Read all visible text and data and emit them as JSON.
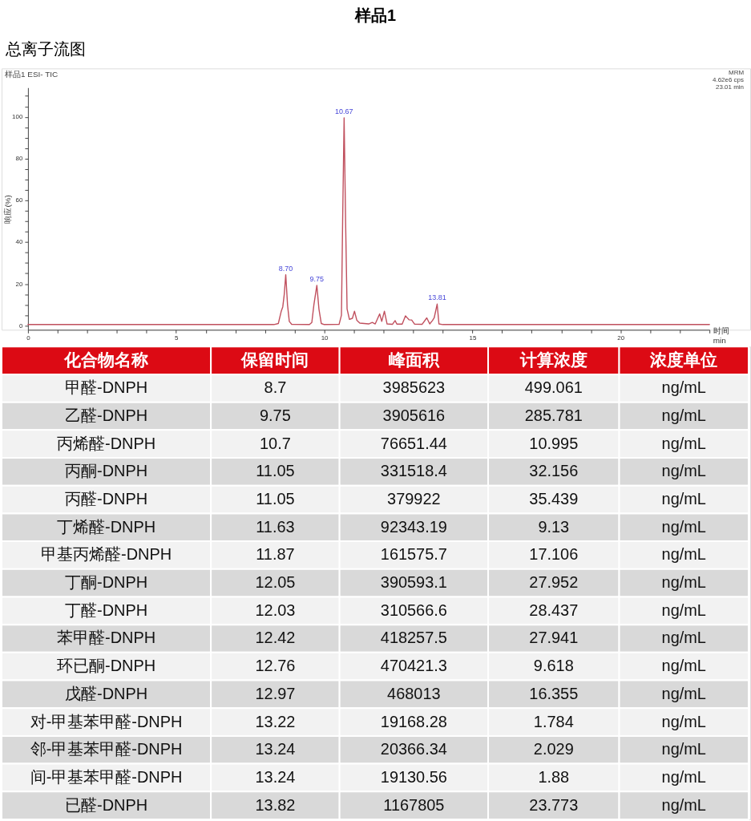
{
  "chart_data": [
    {
      "type": "line",
      "title": "样品1",
      "subtitle": "总离子流图",
      "xlabel": "时间 min",
      "ylabel": "响应(%)",
      "x": [
        0,
        3,
        8.3,
        8.45,
        8.55,
        8.6,
        8.65,
        8.7,
        8.76,
        8.82,
        8.9,
        9.5,
        9.58,
        9.65,
        9.75,
        9.82,
        9.9,
        10.0,
        10.5,
        10.58,
        10.62,
        10.67,
        10.72,
        10.77,
        10.85,
        10.95,
        11.02,
        11.1,
        11.2,
        11.5,
        11.62,
        11.72,
        11.87,
        11.94,
        12.03,
        12.12,
        12.3,
        12.39,
        12.45,
        12.63,
        12.74,
        12.86,
        12.95,
        13.05,
        13.3,
        13.46,
        13.56,
        13.65,
        13.71,
        13.81,
        13.87,
        14.0,
        23
      ],
      "series": [
        {
          "color": "#c0505e",
          "values": [
            0.5,
            0.5,
            0.5,
            1,
            7,
            9,
            15,
            24.4,
            10,
            2,
            0.6,
            0.5,
            1.5,
            10,
            19.3,
            8,
            1,
            0.5,
            0.6,
            5,
            50,
            99.5,
            50,
            8,
            3,
            3.5,
            6.9,
            2.5,
            1.2,
            0.8,
            1.5,
            0.8,
            5.6,
            2,
            6.9,
            0.8,
            0.6,
            2.4,
            0.7,
            0.7,
            4.7,
            2.8,
            2.7,
            0.7,
            0.6,
            3.7,
            0.8,
            2.4,
            3.7,
            10.3,
            0.8,
            0.5,
            0.5
          ]
        }
      ],
      "xlim": [
        0,
        23
      ],
      "ylim": [
        -2,
        114
      ],
      "xticks": [
        0,
        {
          "value": 1,
          "label": null
        },
        {
          "value": 2,
          "label": null
        },
        {
          "value": 3,
          "label": null
        },
        {
          "value": 4,
          "label": null
        },
        5,
        {
          "value": 6,
          "label": null
        },
        {
          "value": 7,
          "label": null
        },
        {
          "value": 8,
          "label": null
        },
        {
          "value": 9,
          "label": null
        },
        10,
        {
          "value": 11,
          "label": null
        },
        {
          "value": 12,
          "label": null
        },
        {
          "value": 13,
          "label": null
        },
        {
          "value": 14,
          "label": null
        },
        15,
        {
          "value": 16,
          "label": null
        },
        {
          "value": 17,
          "label": null
        },
        {
          "value": 18,
          "label": null
        },
        {
          "value": 19,
          "label": null
        },
        20,
        {
          "value": 21,
          "label": null
        },
        {
          "value": 22,
          "label": null
        },
        {
          "value": 23,
          "label": null
        }
      ],
      "yticks": [
        0,
        {
          "value": 5,
          "label": null
        },
        {
          "value": 10,
          "label": null
        },
        {
          "value": 15,
          "label": null
        },
        20,
        {
          "value": 25,
          "label": null
        },
        {
          "value": 30,
          "label": null
        },
        {
          "value": 35,
          "label": null
        },
        40,
        {
          "value": 45,
          "label": null
        },
        {
          "value": 50,
          "label": null
        },
        {
          "value": 55,
          "label": null
        },
        60,
        {
          "value": 65,
          "label": null
        },
        {
          "value": 70,
          "label": null
        },
        {
          "value": 75,
          "label": null
        },
        80,
        {
          "value": 85,
          "label": null
        },
        {
          "value": 90,
          "label": null
        },
        {
          "value": 95,
          "label": null
        },
        100,
        {
          "value": 105,
          "label": null
        },
        {
          "value": 110,
          "label": null
        }
      ],
      "annotations": [
        "样品1 ESI- TIC",
        "MRM",
        "4.62e6 cps",
        "23.01 min",
        {
          "text": "8.70",
          "x": 8.7,
          "y": 24.4
        },
        {
          "text": "9.75",
          "x": 9.75,
          "y": 19.3
        },
        {
          "text": "10.67",
          "x": 10.67,
          "y": 99.5
        },
        {
          "text": "13.81",
          "x": 13.81,
          "y": 10.3
        }
      ]
    },
    {
      "type": "other",
      "categories": [
        "化合物名称",
        "保留时间",
        "峰面积",
        "计算浓度",
        "浓度单位"
      ],
      "cell_labels": [
        [
          "甲醛-DNPH",
          "8.7",
          "3985623",
          "499.061",
          "ng/mL"
        ],
        [
          "乙醛-DNPH",
          "9.75",
          "3905616",
          "285.781",
          "ng/mL"
        ],
        [
          "丙烯醛-DNPH",
          "10.7",
          "76651.44",
          "10.995",
          "ng/mL"
        ],
        [
          "丙酮-DNPH",
          "11.05",
          "331518.4",
          "32.156",
          "ng/mL"
        ],
        [
          "丙醛-DNPH",
          "11.05",
          "379922",
          "35.439",
          "ng/mL"
        ],
        [
          "丁烯醛-DNPH",
          "11.63",
          "92343.19",
          "9.13",
          "ng/mL"
        ],
        [
          "甲基丙烯醛-DNPH",
          "11.87",
          "161575.7",
          "17.106",
          "ng/mL"
        ],
        [
          "丁酮-DNPH",
          "12.05",
          "390593.1",
          "27.952",
          "ng/mL"
        ],
        [
          "丁醛-DNPH",
          "12.03",
          "310566.6",
          "28.437",
          "ng/mL"
        ],
        [
          "苯甲醛-DNPH",
          "12.42",
          "418257.5",
          "27.941",
          "ng/mL"
        ],
        [
          "环已酮-DNPH",
          "12.76",
          "470421.3",
          "9.618",
          "ng/mL"
        ],
        [
          "戊醛-DNPH",
          "12.97",
          "468013",
          "16.355",
          "ng/mL"
        ],
        [
          "对-甲基苯甲醛-DNPH",
          "13.22",
          "19168.28",
          "1.784",
          "ng/mL"
        ],
        [
          "邻-甲基苯甲醛-DNPH",
          "13.24",
          "20366.34",
          "2.029",
          "ng/mL"
        ],
        [
          "间-甲基苯甲醛-DNPH",
          "13.24",
          "19130.56",
          "1.88",
          "ng/mL"
        ],
        [
          "已醛-DNPH",
          "13.82",
          "1167805",
          "23.773",
          "ng/mL"
        ]
      ]
    }
  ]
}
